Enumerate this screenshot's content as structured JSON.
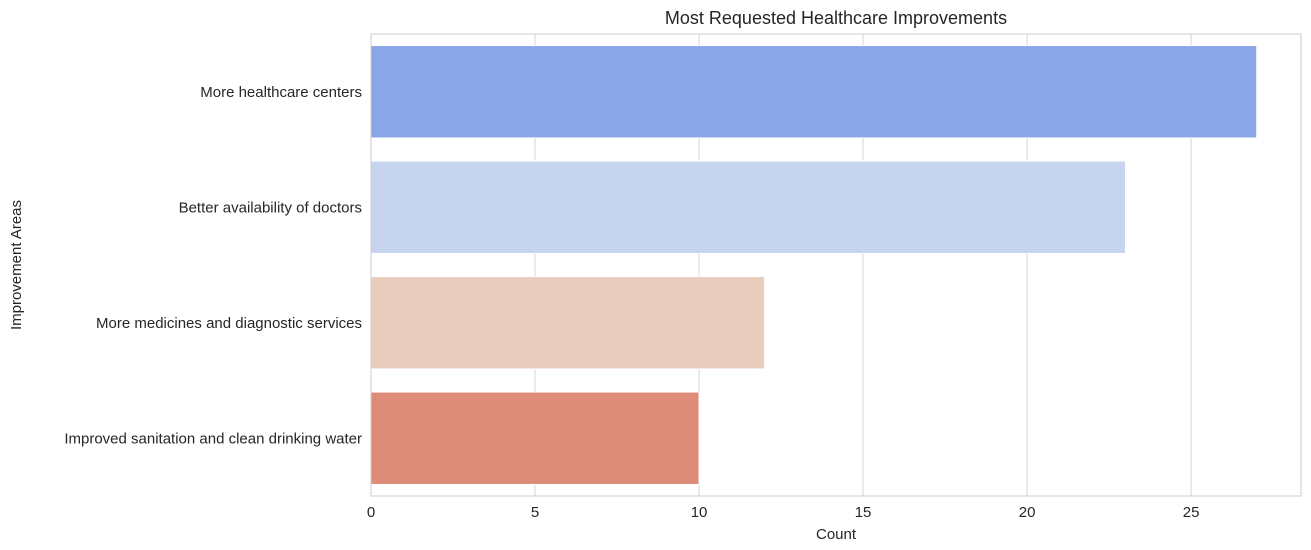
{
  "chart_data": {
    "type": "bar",
    "orientation": "horizontal",
    "title": "Most Requested Healthcare Improvements",
    "xlabel": "Count",
    "ylabel": "Improvement Areas",
    "categories": [
      "More healthcare centers",
      "Better availability of doctors",
      "More medicines and diagnostic services",
      "Improved sanitation and clean drinking water"
    ],
    "values": [
      27,
      23,
      12,
      10
    ],
    "colors": [
      "#8aa6e8",
      "#c6d4ef",
      "#eaccbf",
      "#dc8c78"
    ],
    "xlim": [
      0,
      28.35
    ],
    "xticks": [
      0,
      5,
      10,
      15,
      20,
      25
    ],
    "grid": "vertical"
  }
}
